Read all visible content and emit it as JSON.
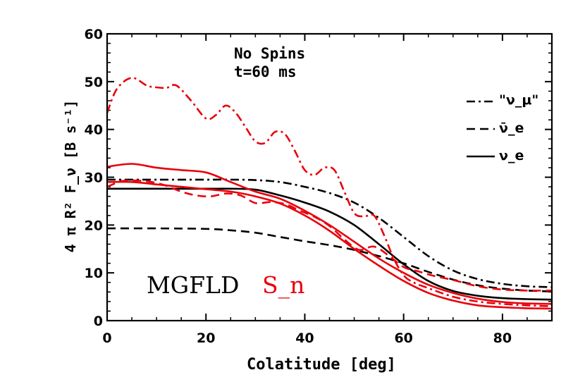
{
  "chart_data": {
    "type": "line",
    "title_lines": [
      "No Spins",
      "t=60 ms"
    ],
    "xlabel": "Colatitude [deg]",
    "ylabel": "4 π R² F_ν [B s⁻¹]",
    "xlim": [
      0,
      90
    ],
    "ylim": [
      0,
      60
    ],
    "xticks": [
      "0",
      "20",
      "40",
      "60",
      "80"
    ],
    "yticks": [
      "0",
      "10",
      "20",
      "30",
      "40",
      "50",
      "60"
    ],
    "grid": false,
    "legend_position": "top-right",
    "legend": [
      {
        "label": "\"ν_μ\"",
        "style": "dash-dot"
      },
      {
        "label": "ν̄_e",
        "style": "dashed"
      },
      {
        "label": "ν_e",
        "style": "solid"
      }
    ],
    "codes": [
      {
        "label": "MGFLD",
        "color": "#000000"
      },
      {
        "label": "S_n",
        "color": "#e8000b"
      }
    ],
    "series": [
      {
        "name": "MGFLD \"nu_mu\"",
        "code": "MGFLD",
        "style": "dash-dot",
        "color": "#000000",
        "x": [
          0,
          10,
          20,
          25,
          30,
          35,
          40,
          45,
          50,
          55,
          60,
          65,
          70,
          75,
          80,
          85,
          90
        ],
        "y": [
          29.5,
          29.5,
          29.5,
          29.5,
          29.4,
          29.0,
          28.0,
          26.7,
          24.7,
          21.5,
          17.5,
          13.5,
          10.5,
          8.7,
          7.7,
          7.2,
          7.0
        ]
      },
      {
        "name": "MGFLD anti-nu_e",
        "code": "MGFLD",
        "style": "dashed",
        "color": "#000000",
        "x": [
          0,
          10,
          20,
          25,
          30,
          35,
          40,
          45,
          50,
          55,
          60,
          65,
          70,
          75,
          80,
          85,
          90
        ],
        "y": [
          19.3,
          19.3,
          19.2,
          18.9,
          18.4,
          17.5,
          16.6,
          15.8,
          14.8,
          13.5,
          12.0,
          10.2,
          8.6,
          7.4,
          6.7,
          6.3,
          6.1
        ]
      },
      {
        "name": "MGFLD nu_e",
        "code": "MGFLD",
        "style": "solid",
        "color": "#000000",
        "x": [
          0,
          10,
          20,
          25,
          30,
          35,
          40,
          45,
          50,
          55,
          60,
          65,
          70,
          75,
          80,
          85,
          90
        ],
        "y": [
          27.6,
          27.6,
          27.6,
          27.6,
          27.4,
          26.2,
          24.7,
          22.8,
          20.0,
          16.0,
          11.8,
          8.3,
          6.2,
          5.2,
          4.7,
          4.5,
          4.4
        ]
      },
      {
        "name": "Sn \"nu_mu\"",
        "code": "Sn",
        "style": "dash-dot",
        "color": "#e8000b",
        "x": [
          0,
          2,
          5,
          8,
          10,
          12,
          14,
          17,
          20,
          22,
          24,
          26,
          28,
          30,
          32,
          34,
          36,
          38,
          40,
          42,
          44,
          46,
          48,
          50,
          52,
          54,
          56,
          58,
          60,
          62,
          65,
          70,
          75,
          80,
          85,
          90
        ],
        "y": [
          43.5,
          48.5,
          50.8,
          49.2,
          48.8,
          48.7,
          49.2,
          46.0,
          42.3,
          43.0,
          45.0,
          43.5,
          40.5,
          37.5,
          37.2,
          39.5,
          39.0,
          35.5,
          31.5,
          30.5,
          32.0,
          31.5,
          27.0,
          22.5,
          21.8,
          22.0,
          18.0,
          13.0,
          9.5,
          8.0,
          6.8,
          5.0,
          4.0,
          3.5,
          3.2,
          3.0
        ]
      },
      {
        "name": "Sn anti-nu_e",
        "code": "Sn",
        "style": "dashed",
        "color": "#e8000b",
        "x": [
          0,
          3,
          6,
          9,
          12,
          15,
          18,
          21,
          24,
          27,
          30,
          33,
          36,
          39,
          42,
          45,
          48,
          51,
          54,
          57,
          60,
          63,
          66,
          70,
          75,
          80,
          85,
          90
        ],
        "y": [
          28.0,
          29.2,
          29.3,
          29.0,
          28.2,
          27.0,
          26.2,
          26.0,
          26.6,
          26.2,
          24.6,
          24.8,
          24.4,
          23.0,
          21.7,
          19.8,
          17.0,
          14.8,
          15.5,
          13.6,
          11.2,
          10.3,
          9.4,
          8.5,
          7.2,
          6.5,
          6.3,
          6.3
        ]
      },
      {
        "name": "Sn nu_e (upper)",
        "code": "Sn",
        "style": "solid",
        "color": "#e8000b",
        "x": [
          0,
          5,
          10,
          15,
          20,
          25,
          30,
          35,
          40,
          45,
          50,
          55,
          60,
          65,
          70,
          75,
          80,
          85,
          90
        ],
        "y": [
          32.2,
          32.8,
          32.0,
          31.5,
          31.0,
          29.0,
          27.0,
          25.5,
          23.0,
          20.0,
          16.5,
          13.0,
          10.0,
          7.5,
          5.8,
          4.6,
          3.9,
          3.6,
          3.5
        ]
      },
      {
        "name": "Sn nu_e (lower)",
        "code": "Sn",
        "style": "solid",
        "color": "#e8000b",
        "x": [
          0,
          5,
          10,
          15,
          20,
          25,
          30,
          35,
          40,
          45,
          50,
          55,
          60,
          65,
          70,
          75,
          80,
          85,
          90
        ],
        "y": [
          29.0,
          29.0,
          28.5,
          28.0,
          27.5,
          27.0,
          26.0,
          24.5,
          22.0,
          18.8,
          15.0,
          11.5,
          8.3,
          5.8,
          4.2,
          3.2,
          2.8,
          2.6,
          2.5
        ]
      }
    ]
  }
}
